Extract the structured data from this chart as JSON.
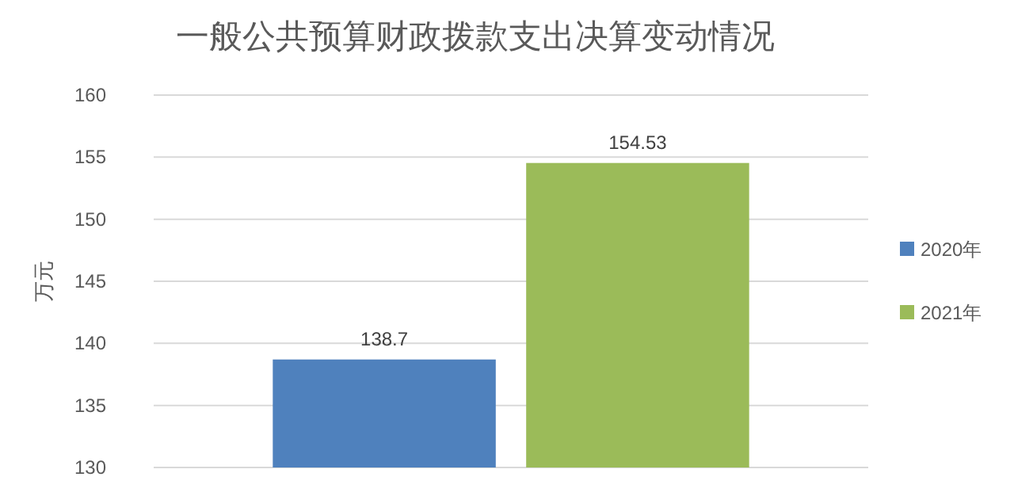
{
  "chart_data": {
    "type": "bar",
    "title": "一般公共预算财政拨款支出决算变动情况",
    "ylabel": "万元",
    "categories": [
      null
    ],
    "series": [
      {
        "name": "2020年",
        "color": "#4f81bd",
        "values": [
          138.7
        ]
      },
      {
        "name": "2021年",
        "color": "#9bbb59",
        "values": [
          154.53
        ]
      }
    ],
    "ylim": [
      130,
      160
    ],
    "yticks": [
      130,
      135,
      140,
      145,
      150,
      155,
      160
    ],
    "grid": "y",
    "legend": "right",
    "data_labels": true
  }
}
